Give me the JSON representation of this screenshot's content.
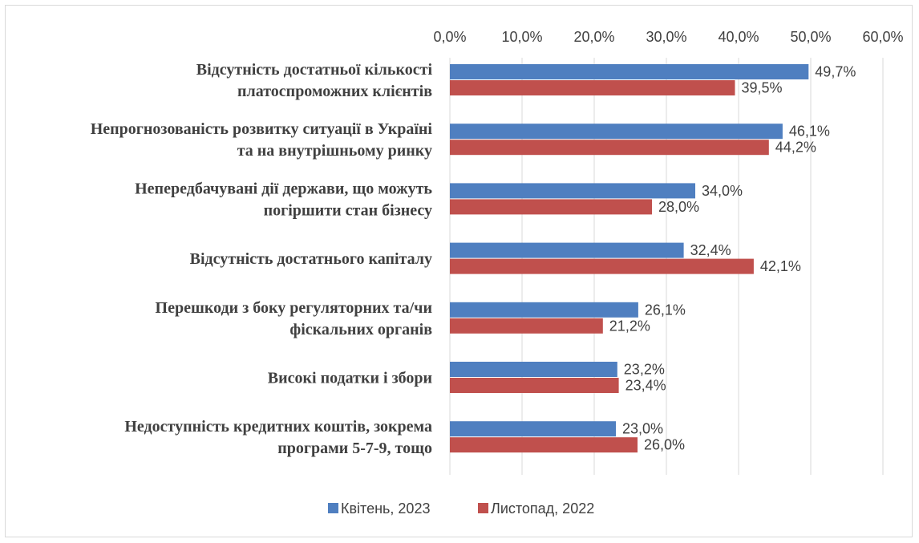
{
  "chart_data": {
    "type": "bar",
    "orientation": "horizontal",
    "categories": [
      [
        "Відсутність достатньої кількості",
        "платоспроможних клієнтів"
      ],
      [
        "Непрогнозованість розвитку ситуації в Україні",
        "та на внутрішньому ринку"
      ],
      [
        "Непередбачувані дії держави, що можуть",
        "погіршити стан бізнесу"
      ],
      [
        "Відсутність достатнього капіталу"
      ],
      [
        "Перешкоди з боку регуляторних та/чи",
        "фіскальних органів"
      ],
      [
        "Високі податки і збори"
      ],
      [
        "Недоступність кредитних коштів, зокрема",
        "програми 5-7-9, тощо"
      ]
    ],
    "series": [
      {
        "name": "Квітень, 2023",
        "color": "#4F7FC0",
        "values": [
          49.7,
          46.1,
          34.0,
          32.4,
          26.1,
          23.2,
          23.0
        ],
        "labels": [
          "49,7%",
          "46,1%",
          "34,0%",
          "32,4%",
          "26,1%",
          "23,2%",
          "23,0%"
        ]
      },
      {
        "name": "Листопад, 2022",
        "color": "#C0504D",
        "values": [
          39.5,
          44.2,
          28.0,
          42.1,
          21.2,
          23.4,
          26.0
        ],
        "labels": [
          "39,5%",
          "44,2%",
          "28,0%",
          "42,1%",
          "21,2%",
          "23,4%",
          "26,0%"
        ]
      }
    ],
    "xlim": [
      0,
      60
    ],
    "xticks": [
      0,
      10,
      20,
      30,
      40,
      50,
      60
    ],
    "xtick_labels": [
      "0,0%",
      "10,0%",
      "20,0%",
      "30,0%",
      "40,0%",
      "50,0%",
      "60,0%"
    ],
    "axis_position": "top",
    "grid": true,
    "legend_position": "bottom"
  }
}
